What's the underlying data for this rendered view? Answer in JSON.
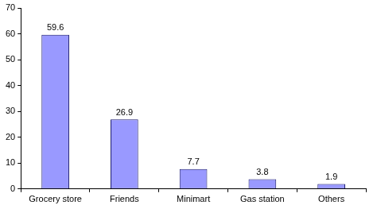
{
  "chart_data": {
    "type": "bar",
    "categories": [
      "Grocery store",
      "Friends",
      "Minimart",
      "Gas station",
      "Others"
    ],
    "values": [
      59.6,
      26.9,
      7.7,
      3.8,
      1.9
    ],
    "color": "#9999ff",
    "ylim": [
      0,
      70
    ],
    "yticks": [
      0,
      10,
      20,
      30,
      40,
      50,
      60,
      70
    ],
    "grid": false,
    "data_labels": true
  }
}
